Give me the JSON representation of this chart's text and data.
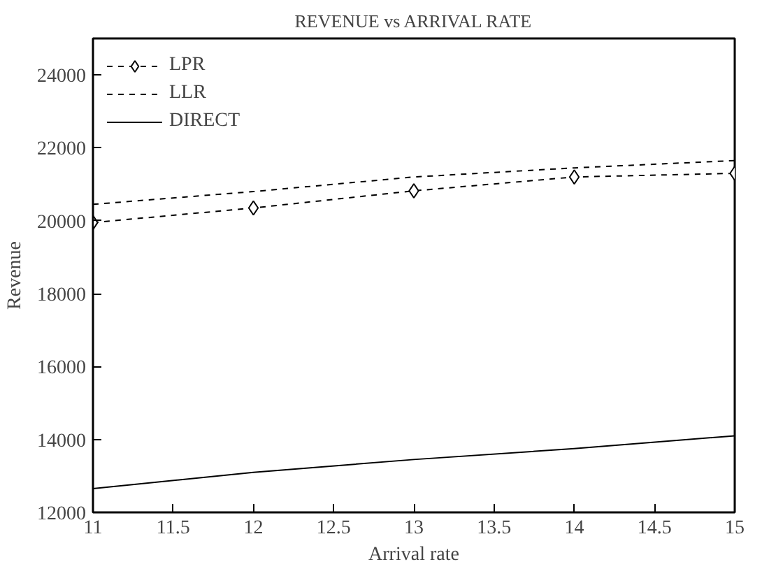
{
  "chart_data": {
    "type": "line",
    "title": "REVENUE vs ARRIVAL RATE",
    "xlabel": "Arrival rate",
    "ylabel": "Revenue",
    "x": [
      11,
      12,
      13,
      14,
      15
    ],
    "series": [
      {
        "name": "LPR",
        "color": "#000000",
        "values": [
          19950,
          20350,
          20820,
          21200,
          21300
        ],
        "marker": "diamond",
        "line_style": "dashed"
      },
      {
        "name": "LLR",
        "color": "#000000",
        "values": [
          20450,
          20800,
          21200,
          21450,
          21650
        ],
        "marker": "none",
        "line_style": "dashed"
      },
      {
        "name": "DIRECT",
        "color": "#000000",
        "values": [
          12650,
          13100,
          13450,
          13750,
          14100
        ],
        "marker": "none",
        "line_style": "solid"
      }
    ],
    "xlim": [
      11,
      15
    ],
    "ylim": [
      12000,
      25000
    ],
    "xticks": [
      11,
      11.5,
      12,
      12.5,
      13,
      13.5,
      14,
      14.5,
      15
    ],
    "yticks": [
      12000,
      14000,
      16000,
      18000,
      20000,
      22000,
      24000
    ],
    "grid": false,
    "legend": "top left"
  }
}
